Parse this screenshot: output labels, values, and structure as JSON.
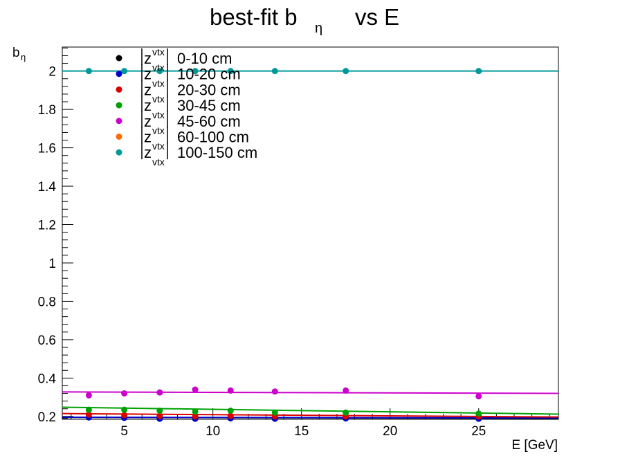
{
  "chart_data": {
    "type": "scatter",
    "title": {
      "main": "best-fit  b",
      "sub": "η",
      "suffix": "vs  E"
    },
    "xlabel": "E  [GeV]",
    "ylabel": {
      "main": "b",
      "sub": "η"
    },
    "xlim": [
      1.5,
      29.5
    ],
    "ylim": [
      0.185,
      2.125
    ],
    "xticks": [
      5,
      10,
      15,
      20,
      25
    ],
    "yticks": [
      0.2,
      0.4,
      0.6,
      0.8,
      1,
      1.2,
      1.4,
      1.6,
      1.8,
      2
    ],
    "xtick_labels": [
      "5",
      "10",
      "15",
      "20",
      "25"
    ],
    "ytick_labels": [
      "0.2",
      "0.4",
      "0.6",
      "0.8",
      "1",
      "1.2",
      "1.4",
      "1.6",
      "1.8",
      "2"
    ],
    "x": [
      3,
      5,
      7,
      9,
      11,
      13.5,
      17.5,
      25
    ],
    "legend_position": "top-left",
    "legend_prefix": {
      "z": "z",
      "sup": "vtx",
      "sub": "vtx"
    },
    "series": [
      {
        "name": "0-10 cm",
        "color": "#000000",
        "values": [
          0.195,
          0.193,
          0.19,
          0.19,
          0.192,
          0.19,
          0.19,
          0.19
        ],
        "fit": [
          0.195,
          0.19
        ]
      },
      {
        "name": "10-20 cm",
        "color": "#0000cc",
        "values": [
          0.195,
          0.193,
          0.188,
          0.188,
          0.19,
          0.188,
          0.19,
          0.188
        ],
        "fit": [
          0.196,
          0.192
        ]
      },
      {
        "name": "20-30 cm",
        "color": "#dd0000",
        "values": [
          0.21,
          0.207,
          0.203,
          0.2,
          0.203,
          0.2,
          0.2,
          0.2
        ],
        "fit": [
          0.215,
          0.197
        ]
      },
      {
        "name": "30-45 cm",
        "color": "#00a000",
        "values": [
          0.235,
          0.235,
          0.23,
          0.225,
          0.23,
          0.22,
          0.22,
          0.215
        ],
        "fit": [
          0.248,
          0.212
        ]
      },
      {
        "name": "45-60 cm",
        "color": "#cc00cc",
        "values": [
          0.31,
          0.32,
          0.325,
          0.34,
          0.335,
          0.33,
          0.335,
          0.305
        ],
        "fit": [
          0.328,
          0.32
        ]
      },
      {
        "name": "60-100 cm",
        "color": "#ff6a00",
        "values": [],
        "fit": []
      },
      {
        "name": "100-150 cm",
        "color": "#009999",
        "values": [
          2,
          2,
          2,
          2,
          2,
          2,
          2,
          2
        ],
        "fit": [
          2,
          2
        ]
      }
    ]
  }
}
